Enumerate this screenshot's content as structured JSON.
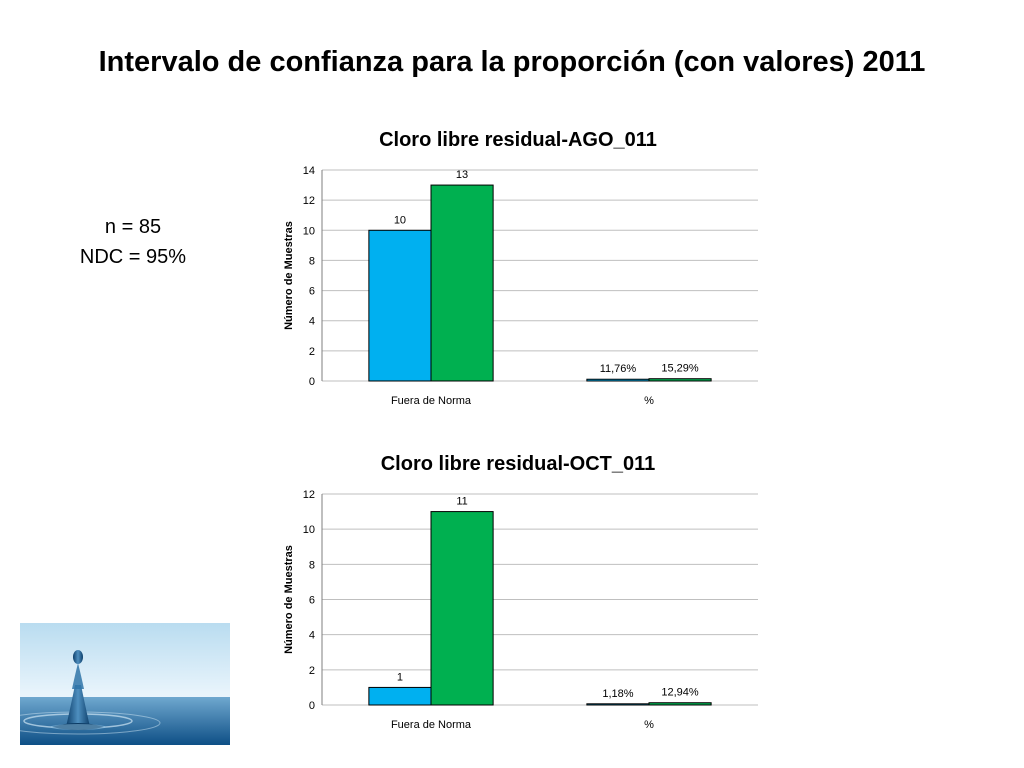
{
  "slide": {
    "title": "Intervalo de confianza para la proporción (con valores) 2011",
    "n_label": "n = 85",
    "ndc_label": "NDC = 95%"
  },
  "colors": {
    "series_blue": "#00B0F0",
    "series_green": "#00B050",
    "bar_outline": "#000000",
    "gridline": "#BFBFBF",
    "text": "#000000"
  },
  "chart_data": [
    {
      "type": "bar",
      "title": "Cloro libre residual-AGO_011",
      "ylabel": "Número de Muestras",
      "xlabel": "",
      "categories": [
        "Fuera de Norma",
        "%"
      ],
      "series": [
        {
          "values": [
            10,
            0.1176
          ],
          "data_labels": [
            "10",
            "11,76%"
          ],
          "color": "#00B0F0"
        },
        {
          "values": [
            13,
            0.1529
          ],
          "data_labels": [
            "13",
            "15,29%"
          ],
          "color": "#00B050"
        }
      ],
      "ylim": [
        0,
        14
      ],
      "yticks": [
        0,
        2,
        4,
        6,
        8,
        10,
        12,
        14
      ],
      "grid": true,
      "legend": "none"
    },
    {
      "type": "bar",
      "title": "Cloro libre residual-OCT_011",
      "ylabel": "Número de Muestras",
      "xlabel": "",
      "categories": [
        "Fuera de Norma",
        "%"
      ],
      "series": [
        {
          "values": [
            1,
            0.0118
          ],
          "data_labels": [
            "1",
            "1,18%"
          ],
          "color": "#00B0F0"
        },
        {
          "values": [
            11,
            0.1294
          ],
          "data_labels": [
            "11",
            "12,94%"
          ],
          "color": "#00B050"
        }
      ],
      "ylim": [
        0,
        12
      ],
      "yticks": [
        0,
        2,
        4,
        6,
        8,
        10,
        12
      ],
      "grid": true,
      "legend": "none"
    }
  ]
}
